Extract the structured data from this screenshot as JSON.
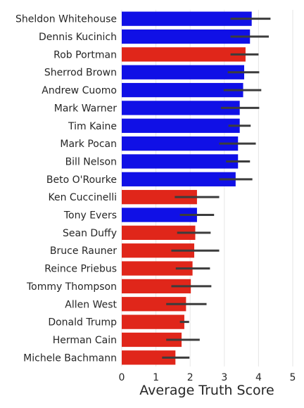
{
  "chart_data": {
    "type": "bar",
    "orientation": "horizontal",
    "xlabel": "Average Truth Score",
    "ylabel": "",
    "xlim": [
      0,
      5
    ],
    "x_ticks": [
      "0",
      "1",
      "2",
      "3",
      "4",
      "5"
    ],
    "grid": "vertical",
    "error_bars": true,
    "colors": {
      "Democrat": "#1010e6",
      "Republican": "#e0261a",
      "error_bar": "#3c3c3c"
    },
    "bars": [
      {
        "label": "Sheldon Whitehouse",
        "value": 3.8,
        "ci": [
          3.18,
          4.35
        ],
        "party": "Democrat"
      },
      {
        "label": "Dennis Kucinich",
        "value": 3.75,
        "ci": [
          3.18,
          4.3
        ],
        "party": "Democrat"
      },
      {
        "label": "Rob Portman",
        "value": 3.62,
        "ci": [
          3.18,
          4.0
        ],
        "party": "Republican"
      },
      {
        "label": "Sherrod Brown",
        "value": 3.58,
        "ci": [
          3.1,
          4.02
        ],
        "party": "Democrat"
      },
      {
        "label": "Andrew Cuomo",
        "value": 3.55,
        "ci": [
          2.98,
          4.08
        ],
        "party": "Democrat"
      },
      {
        "label": "Mark Warner",
        "value": 3.45,
        "ci": [
          2.9,
          4.02
        ],
        "party": "Democrat"
      },
      {
        "label": "Tim Kaine",
        "value": 3.45,
        "ci": [
          3.12,
          3.77
        ],
        "party": "Democrat"
      },
      {
        "label": "Mark Pocan",
        "value": 3.4,
        "ci": [
          2.85,
          3.92
        ],
        "party": "Democrat"
      },
      {
        "label": "Bill Nelson",
        "value": 3.4,
        "ci": [
          3.05,
          3.75
        ],
        "party": "Democrat"
      },
      {
        "label": "Beto O'Rourke",
        "value": 3.33,
        "ci": [
          2.85,
          3.82
        ],
        "party": "Democrat"
      },
      {
        "label": "Ken Cuccinelli",
        "value": 2.2,
        "ci": [
          1.55,
          2.85
        ],
        "party": "Republican"
      },
      {
        "label": "Tony Evers",
        "value": 2.2,
        "ci": [
          1.7,
          2.7
        ],
        "party": "Democrat"
      },
      {
        "label": "Sean Duffy",
        "value": 2.15,
        "ci": [
          1.62,
          2.6
        ],
        "party": "Republican"
      },
      {
        "label": "Bruce Rauner",
        "value": 2.12,
        "ci": [
          1.45,
          2.85
        ],
        "party": "Republican"
      },
      {
        "label": "Reince Priebus",
        "value": 2.07,
        "ci": [
          1.58,
          2.58
        ],
        "party": "Republican"
      },
      {
        "label": "Tommy Thompson",
        "value": 2.02,
        "ci": [
          1.45,
          2.62
        ],
        "party": "Republican"
      },
      {
        "label": "Allen West",
        "value": 1.88,
        "ci": [
          1.3,
          2.48
        ],
        "party": "Republican"
      },
      {
        "label": "Donald Trump",
        "value": 1.83,
        "ci": [
          1.7,
          1.97
        ],
        "party": "Republican"
      },
      {
        "label": "Herman Cain",
        "value": 1.75,
        "ci": [
          1.3,
          2.28
        ],
        "party": "Republican"
      },
      {
        "label": "Michele Bachmann",
        "value": 1.57,
        "ci": [
          1.18,
          1.98
        ],
        "party": "Republican"
      }
    ]
  }
}
